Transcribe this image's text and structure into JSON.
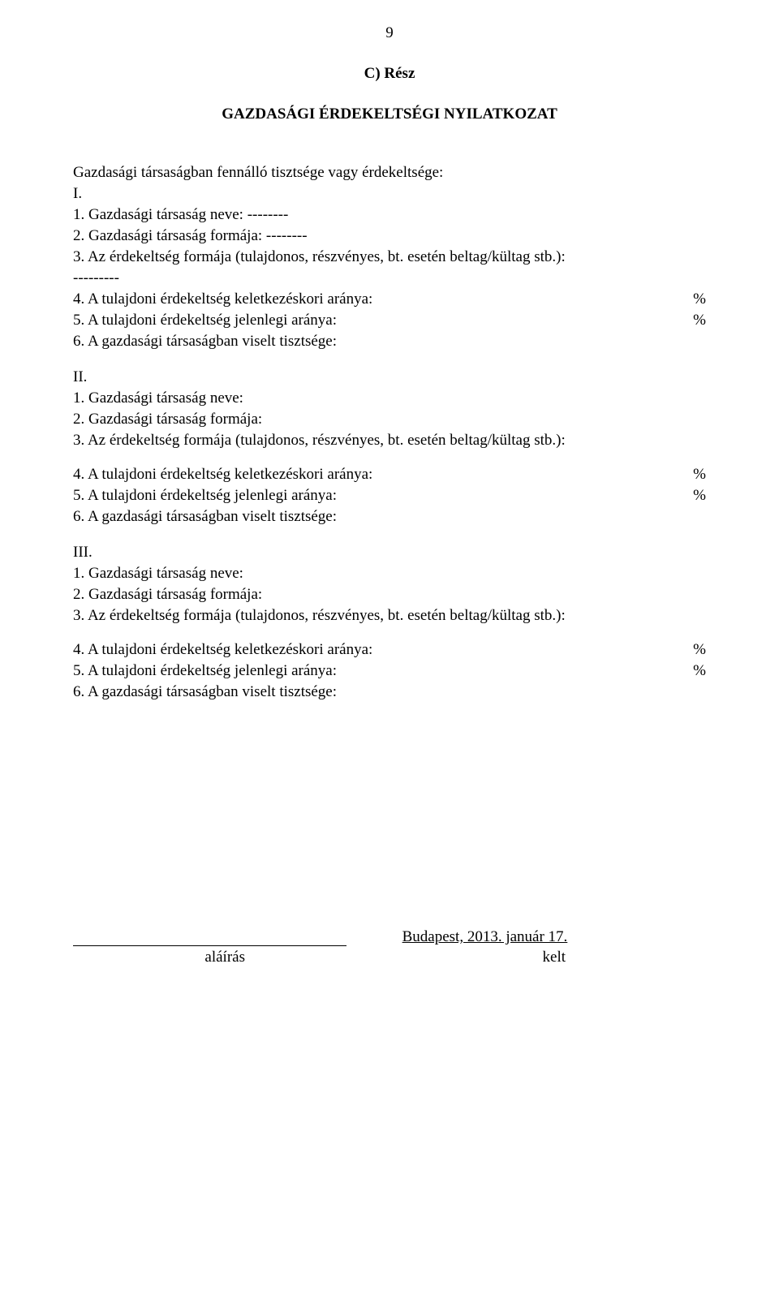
{
  "page_number": "9",
  "section_header": "C) Rész",
  "title": "GAZDASÁGI ÉRDEKELTSÉGI NYILATKOZAT",
  "intro": "Gazdasági társaságban fennálló tisztsége vagy érdekeltsége:",
  "sections": {
    "I": {
      "roman": "I.",
      "l1": "1. Gazdasági társaság neve: --------",
      "l2": "2. Gazdasági társaság formája: --------",
      "l3": "3. Az érdekeltség formája (tulajdonos, részvényes, bt. esetén beltag/kültag stb.):",
      "l3b": "---------",
      "l4": "4. A tulajdoni érdekeltség keletkezéskori aránya:",
      "l5": "5. A tulajdoni érdekeltség jelenlegi aránya:",
      "l6": "6. A gazdasági társaságban viselt tisztsége:"
    },
    "II": {
      "roman": "II.",
      "l1": "1. Gazdasági társaság neve:",
      "l2": "2. Gazdasági társaság formája:",
      "l3": "3. Az érdekeltség formája (tulajdonos, részvényes, bt. esetén beltag/kültag stb.):",
      "l4": "4. A tulajdoni érdekeltség keletkezéskori aránya:",
      "l5": "5. A tulajdoni érdekeltség jelenlegi aránya:",
      "l6": "6. A gazdasági társaságban viselt tisztsége:"
    },
    "III": {
      "roman": "III.",
      "l1": "1. Gazdasági társaság neve:",
      "l2": "2. Gazdasági társaság formája:",
      "l3": "3. Az érdekeltség formája (tulajdonos, részvényes, bt. esetén beltag/kültag stb.):",
      "l4": "4. A tulajdoni érdekeltség keletkezéskori aránya:",
      "l5": "5. A tulajdoni érdekeltség jelenlegi aránya:",
      "l6": "6. A gazdasági társaságban viselt tisztsége:"
    }
  },
  "percent_symbol": "%",
  "signature": {
    "date": "Budapest, 2013. január 17.",
    "label_left": "aláírás",
    "label_right": "kelt"
  }
}
